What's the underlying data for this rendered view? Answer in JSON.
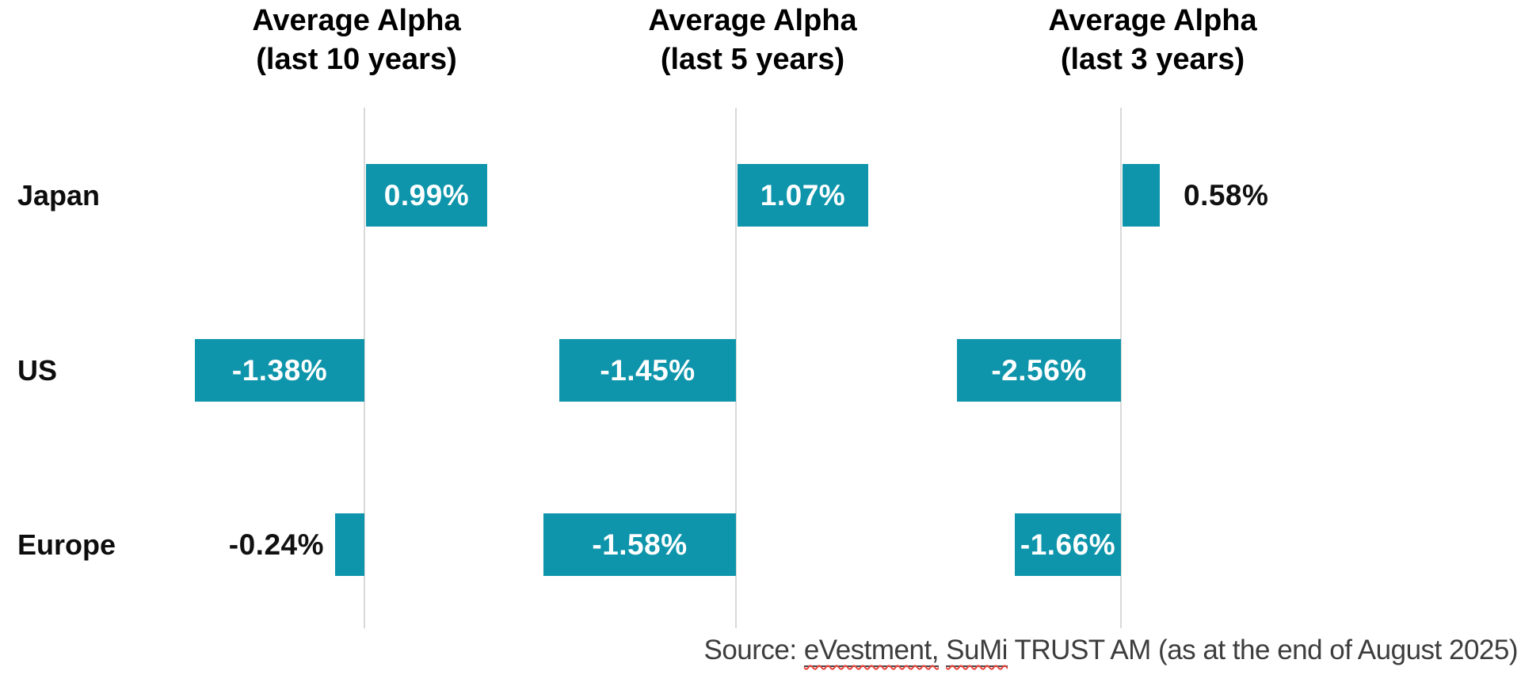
{
  "chart_data": {
    "type": "bar",
    "orientation": "horizontal",
    "unit": "%",
    "categories": [
      "Japan",
      "US",
      "Europe"
    ],
    "panels": [
      {
        "title_line1": "Average Alpha",
        "title_line2": "(last 10 years)",
        "values": [
          0.99,
          -1.38,
          -0.24
        ],
        "labels": [
          "0.99%",
          "-1.38%",
          "-0.24%"
        ],
        "label_placement": [
          "inside",
          "inside",
          "outside"
        ]
      },
      {
        "title_line1": "Average Alpha",
        "title_line2": "(last 5 years)",
        "values": [
          1.07,
          -1.45,
          -1.58
        ],
        "labels": [
          "1.07%",
          "-1.45%",
          "-1.58%"
        ],
        "label_placement": [
          "inside",
          "inside",
          "inside"
        ]
      },
      {
        "title_line1": "Average Alpha",
        "title_line2": "(last 3 years)",
        "values": [
          0.58,
          -2.56,
          -1.66
        ],
        "labels": [
          "0.58%",
          "-2.56%",
          "-1.66%"
        ],
        "label_placement": [
          "outside",
          "inside",
          "inside"
        ]
      }
    ],
    "bar_color": "#0e95ab",
    "axis_line_color": "#d9d9d9",
    "inside_label_color": "#ffffff",
    "outside_label_color": "#111111",
    "grid": false,
    "legend": false
  },
  "source_note": {
    "prefix": "Source: ",
    "word1": "eVestment,",
    "separator": " ",
    "word2": "SuMi",
    "suffix": " TRUST AM (as at the end of August 2025)"
  }
}
